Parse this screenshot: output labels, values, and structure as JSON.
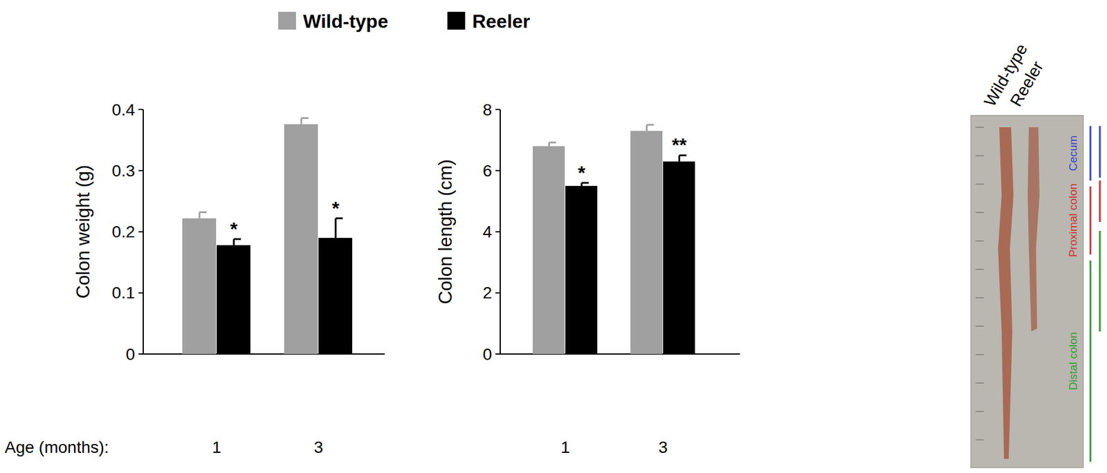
{
  "chart_data": [
    {
      "type": "bar",
      "xlabel": "Age (months):",
      "ylabel": "Colon weight (g)",
      "categories": [
        "1",
        "3"
      ],
      "ylim": [
        0,
        0.4
      ],
      "yticks": [
        0,
        0.1,
        0.2,
        0.3,
        0.4
      ],
      "legend": "top",
      "series": [
        {
          "name": "Wild-type",
          "color": "#a0a0a0",
          "values": [
            0.222,
            0.376
          ],
          "errors": [
            0.01,
            0.01
          ],
          "annotations": [
            null,
            null
          ]
        },
        {
          "name": "Reeler",
          "color": "#000000",
          "values": [
            0.178,
            0.19
          ],
          "errors": [
            0.01,
            0.032
          ],
          "annotations": [
            "*",
            "*"
          ]
        }
      ]
    },
    {
      "type": "bar",
      "ylabel": "Colon length  (cm)",
      "categories": [
        "1",
        "3"
      ],
      "ylim": [
        0,
        8
      ],
      "yticks": [
        0,
        2,
        4,
        6,
        8
      ],
      "series": [
        {
          "color": "#a0a0a0",
          "values": [
            6.8,
            7.3
          ],
          "errors": [
            0.12,
            0.2
          ],
          "annotations": [
            null,
            null
          ]
        },
        {
          "color": "#000000",
          "values": [
            5.5,
            6.3
          ],
          "errors": [
            0.1,
            0.2
          ],
          "annotations": [
            "*",
            "**"
          ]
        }
      ]
    }
  ],
  "image": {
    "columns": [
      "Wild-type",
      "Reeler"
    ],
    "segments": [
      "Cecum",
      "Proximal colon",
      "Distal colon"
    ],
    "segment_colors": [
      "#3344cc",
      "#cc3333",
      "#339933"
    ]
  }
}
